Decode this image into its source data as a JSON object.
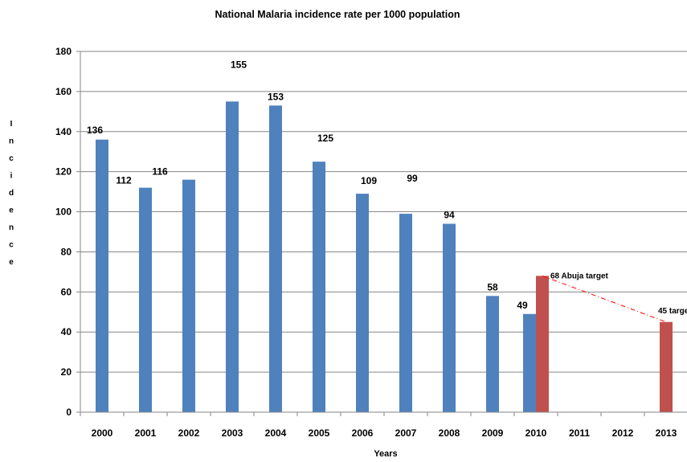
{
  "chart_data": {
    "type": "bar",
    "title": "National Malaria incidence rate per 1000 population",
    "xlabel": "Years",
    "ylabel": "Incidence",
    "ylim": [
      0,
      180
    ],
    "yticks": [
      0,
      20,
      40,
      60,
      80,
      100,
      120,
      140,
      160,
      180
    ],
    "categories": [
      "2000",
      "2001",
      "2002",
      "2003",
      "2004",
      "2005",
      "2006",
      "2007",
      "2008",
      "2009",
      "2010",
      "2011",
      "2012",
      "2013"
    ],
    "grid": true,
    "series": [
      {
        "color": "#4F81BD",
        "values": [
          136,
          112,
          116,
          155,
          153,
          125,
          109,
          99,
          94,
          58,
          49,
          null,
          null,
          null
        ],
        "labels": [
          "136",
          "112",
          "116",
          "155",
          "153",
          "125",
          "109",
          "99",
          "94",
          "58",
          "49",
          null,
          null,
          null
        ]
      },
      {
        "color": "#C0504D",
        "values": [
          null,
          null,
          null,
          null,
          null,
          null,
          null,
          null,
          null,
          null,
          68,
          null,
          null,
          45
        ],
        "labels": [
          null,
          null,
          null,
          null,
          null,
          null,
          null,
          null,
          null,
          null,
          "68 Abuja  target",
          null,
          null,
          "45 targe"
        ]
      }
    ],
    "annotations": [
      {
        "type": "dash-dot-line",
        "color": "#FF0000",
        "from": {
          "category": "2010",
          "value": 68
        },
        "to": {
          "category": "2013",
          "value": 45
        }
      }
    ]
  }
}
